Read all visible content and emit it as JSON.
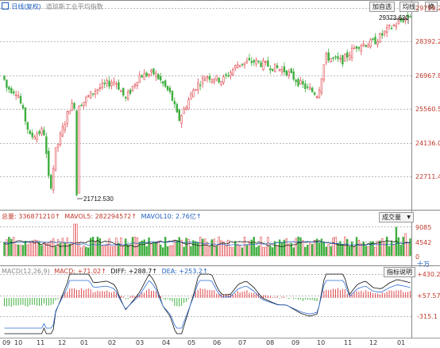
{
  "header": {
    "rights_icon": "restore-rights-icon",
    "rights_label": "日线(复权)",
    "index_name": "道琼斯工业平均指数"
  },
  "toolbar": {
    "overlay_button": "加自选",
    "ma_button": "均线",
    "switch_button": "换"
  },
  "price_panel": {
    "axis_labels": [
      "29799.22",
      "28392.24",
      "26967.85",
      "25560.56",
      "24136.08",
      "22711.49"
    ],
    "high_label": "29373.620",
    "low_label": "21712.530"
  },
  "volume_panel": {
    "legend": {
      "vol": "总量: 336871210↑",
      "ma5": "MAVOL5: 282294572↑",
      "ma10": "MAVOL10: 2.76亿↑"
    },
    "dropdown_label": "成交量",
    "axis_labels": [
      "9085",
      "4542",
      "0"
    ],
    "unit_label": "十万"
  },
  "macd_panel": {
    "legend": {
      "name": "MACD(12,26,9)",
      "macd": "MACD: +71.02↑",
      "diff": "DIFF: +288.7↑",
      "dea": "DEA: +253.2↑"
    },
    "help_button": "指标说明",
    "axis_labels": [
      "+430.2",
      "+57.57",
      "-315.1"
    ]
  },
  "x_axis": {
    "months": [
      "09",
      "10",
      "11",
      "12",
      "01",
      "02",
      "03",
      "04",
      "05",
      "06",
      "07",
      "08",
      "09",
      "10",
      "11",
      "12",
      "01"
    ]
  },
  "colors": {
    "up": "#e0474c",
    "down": "#3fae3f",
    "diff_line": "#111111",
    "dea_line": "#2f6fd6",
    "grid": "#b8b8b8",
    "axis_text": "#c0392b"
  }
}
